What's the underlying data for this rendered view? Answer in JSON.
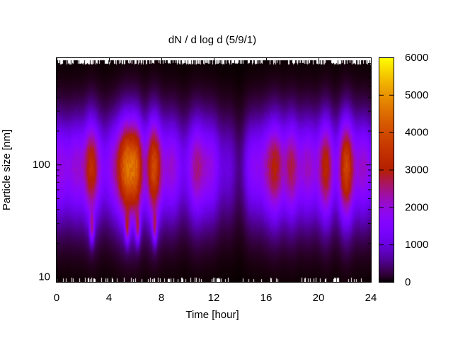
{
  "chart_data": {
    "type": "heatmap",
    "title": "dN / d log d (5/9/1)",
    "xlabel": "Time [hour]",
    "ylabel": "Particle size [nm]",
    "xlim": [
      0,
      24
    ],
    "ylim": [
      9,
      900
    ],
    "yscale": "log",
    "xticks": [
      0,
      4,
      8,
      12,
      16,
      20,
      24
    ],
    "xtick_labels": [
      "0",
      "4",
      "8",
      "12",
      "16",
      "20",
      "24"
    ],
    "yticks": [
      10,
      100
    ],
    "ytick_labels": [
      "10",
      "100"
    ],
    "colorbar": {
      "range": [
        0,
        6000
      ],
      "ticks": [
        0,
        1000,
        2000,
        3000,
        4000,
        5000,
        6000
      ],
      "tick_labels": [
        "0",
        "1000",
        "2000",
        "3000",
        "4000",
        "5000",
        "6000"
      ],
      "palette": "black-purple-orange-yellow"
    },
    "mode_diameter_nm": 95,
    "peaks": [
      {
        "time_h": 2.6,
        "max": 3900
      },
      {
        "time_h": 5.3,
        "max": 4500
      },
      {
        "time_h": 6.1,
        "max": 4300
      },
      {
        "time_h": 7.4,
        "max": 3900
      },
      {
        "time_h": 10.8,
        "max": 2900
      },
      {
        "time_h": 16.8,
        "max": 3400
      },
      {
        "time_h": 18.0,
        "max": 3100
      },
      {
        "time_h": 20.6,
        "max": 3300
      },
      {
        "time_h": 22.1,
        "max": 3900
      }
    ],
    "grid": false,
    "legend": "none"
  }
}
